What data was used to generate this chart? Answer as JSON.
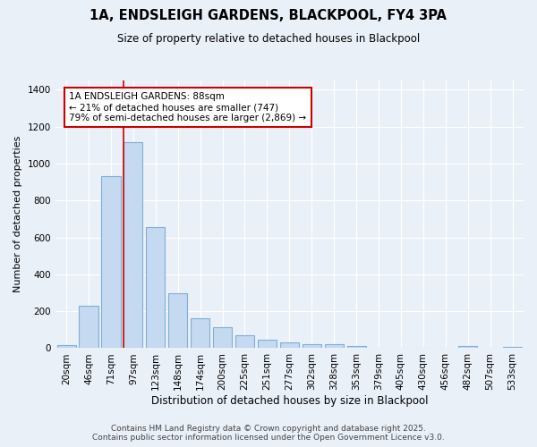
{
  "title": "1A, ENDSLEIGH GARDENS, BLACKPOOL, FY4 3PA",
  "subtitle": "Size of property relative to detached houses in Blackpool",
  "xlabel": "Distribution of detached houses by size in Blackpool",
  "ylabel": "Number of detached properties",
  "categories": [
    "20sqm",
    "46sqm",
    "71sqm",
    "97sqm",
    "123sqm",
    "148sqm",
    "174sqm",
    "200sqm",
    "225sqm",
    "251sqm",
    "277sqm",
    "302sqm",
    "328sqm",
    "353sqm",
    "379sqm",
    "405sqm",
    "430sqm",
    "456sqm",
    "482sqm",
    "507sqm",
    "533sqm"
  ],
  "values": [
    15,
    232,
    930,
    1115,
    655,
    298,
    160,
    115,
    70,
    45,
    30,
    20,
    20,
    14,
    0,
    0,
    0,
    0,
    10,
    0,
    5
  ],
  "bar_color": "#c5d9f0",
  "bar_edge_color": "#7fafd6",
  "annotation_text_line1": "1A ENDSLEIGH GARDENS: 88sqm",
  "annotation_text_line2": "← 21% of detached houses are smaller (747)",
  "annotation_text_line3": "79% of semi-detached houses are larger (2,869) →",
  "annotation_box_facecolor": "#ffffff",
  "annotation_box_edgecolor": "#cc0000",
  "red_line_color": "#cc0000",
  "footer_line1": "Contains HM Land Registry data © Crown copyright and database right 2025.",
  "footer_line2": "Contains public sector information licensed under the Open Government Licence v3.0.",
  "background_color": "#eaf0f8",
  "grid_color": "#ffffff",
  "ylim": [
    0,
    1450
  ],
  "yticks": [
    0,
    200,
    400,
    600,
    800,
    1000,
    1200,
    1400
  ],
  "title_fontsize": 10.5,
  "subtitle_fontsize": 8.5,
  "xlabel_fontsize": 8.5,
  "ylabel_fontsize": 8,
  "tick_fontsize": 7.5,
  "footer_fontsize": 6.5,
  "annotation_fontsize": 7.5
}
